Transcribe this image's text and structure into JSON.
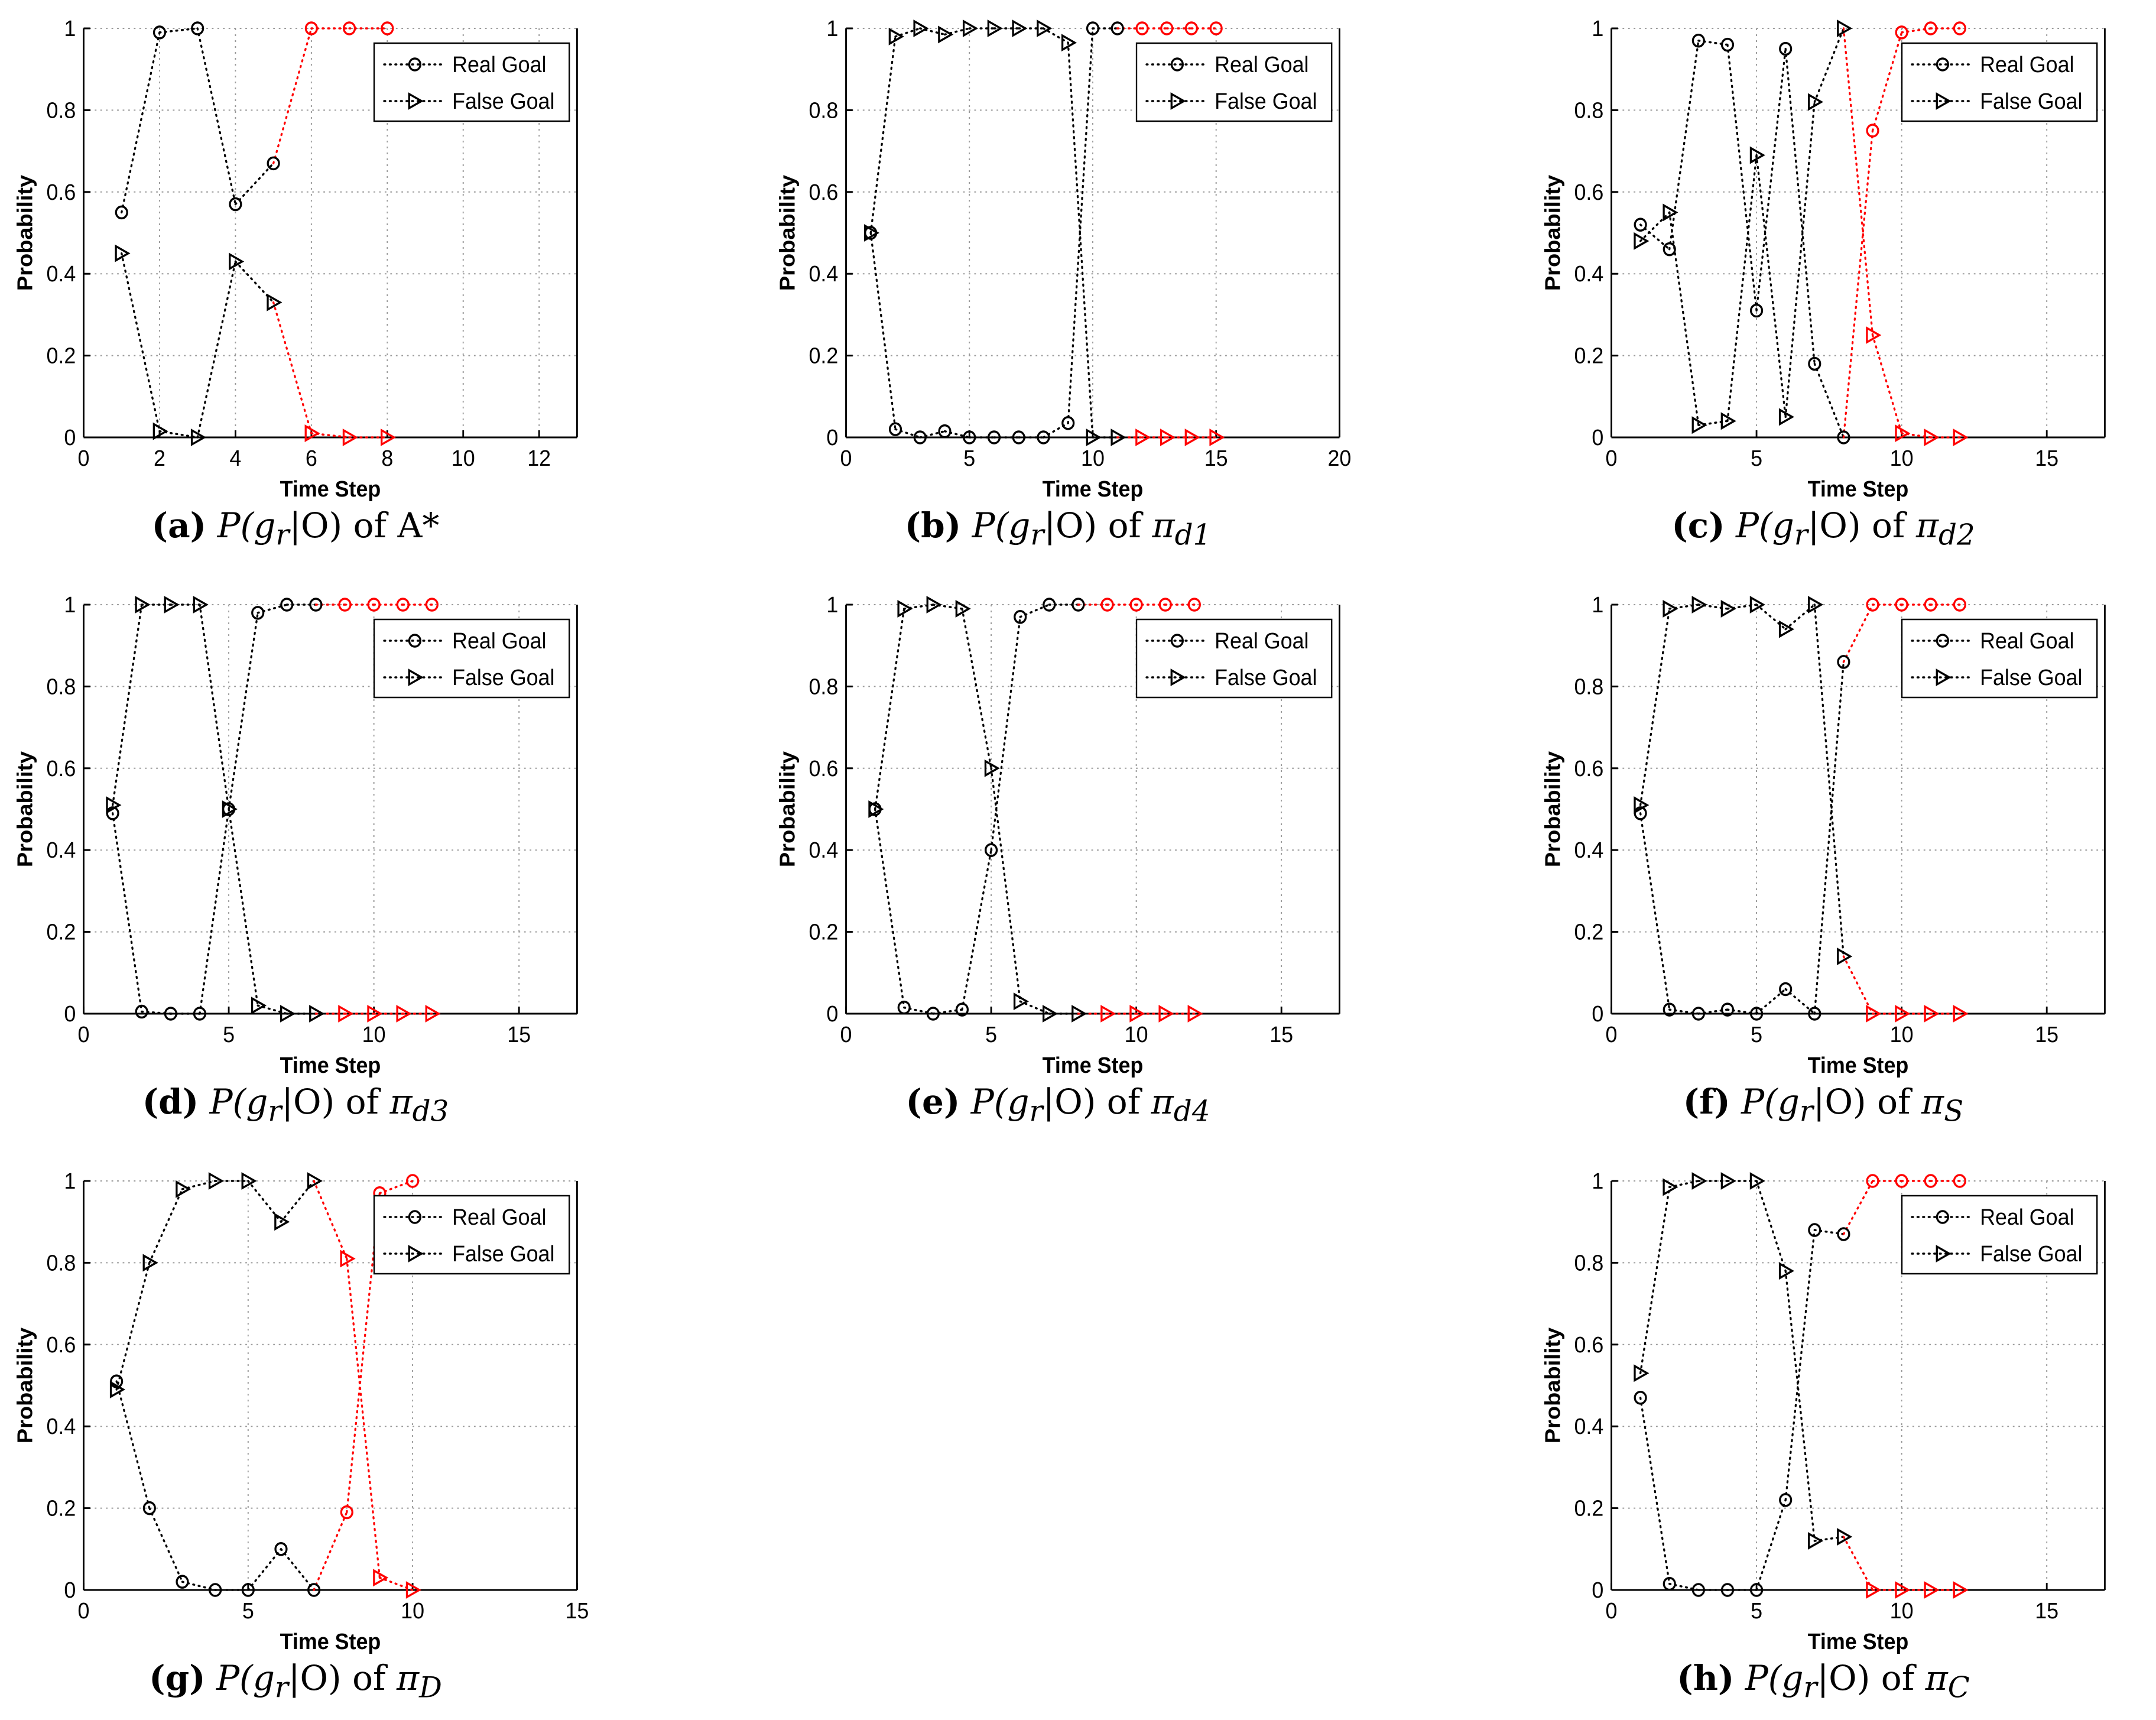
{
  "figure": {
    "panels": [
      {
        "id": "a",
        "caption": {
          "letter": "(a)",
          "expr": "P(g",
          "sub": "r",
          "expr2": "|O) of ",
          "policy": "A*",
          "policy_sub": ""
        },
        "chart_data": {
          "type": "line",
          "xlabel": "Time Step",
          "ylabel": "Probability",
          "xlim": [
            0,
            13
          ],
          "ylim": [
            0,
            1
          ],
          "xticks": [
            0,
            2,
            4,
            6,
            8,
            10,
            12
          ],
          "yticks": [
            0,
            0.2,
            0.4,
            0.6,
            0.8,
            1
          ],
          "grid": true,
          "legend_position": "top-right",
          "series": [
            {
              "name": "Real Goal",
              "marker": "circle",
              "x": [
                1,
                2,
                3,
                4,
                5,
                6,
                7,
                8
              ],
              "values": [
                0.55,
                0.99,
                1.0,
                0.57,
                0.67,
                1.0,
                1.0,
                1.0
              ],
              "red_from": 6
            },
            {
              "name": "False Goal",
              "marker": "triangle-right",
              "x": [
                1,
                2,
                3,
                4,
                5,
                6,
                7,
                8
              ],
              "values": [
                0.45,
                0.015,
                0.0,
                0.43,
                0.33,
                0.01,
                0.0,
                0.0
              ],
              "red_from": 6
            }
          ]
        }
      },
      {
        "id": "b",
        "caption": {
          "letter": "(b)",
          "expr": "P(g",
          "sub": "r",
          "expr2": "|O) of ",
          "policy": "π",
          "policy_sub": "d1"
        },
        "chart_data": {
          "type": "line",
          "xlabel": "Time Step",
          "ylabel": "Probability",
          "xlim": [
            0,
            20
          ],
          "ylim": [
            0,
            1
          ],
          "xticks": [
            0,
            5,
            10,
            15,
            20
          ],
          "yticks": [
            0,
            0.2,
            0.4,
            0.6,
            0.8,
            1
          ],
          "grid": true,
          "legend_position": "top-right",
          "series": [
            {
              "name": "Real Goal",
              "marker": "circle",
              "x": [
                1,
                2,
                3,
                4,
                5,
                6,
                7,
                8,
                9,
                10,
                11,
                12,
                13,
                14,
                15
              ],
              "values": [
                0.5,
                0.02,
                0.0,
                0.015,
                0.0,
                0.0,
                0.0,
                0.0,
                0.035,
                1.0,
                1.0,
                1.0,
                1.0,
                1.0,
                1.0
              ],
              "red_from": 12
            },
            {
              "name": "False Goal",
              "marker": "triangle-right",
              "x": [
                1,
                2,
                3,
                4,
                5,
                6,
                7,
                8,
                9,
                10,
                11,
                12,
                13,
                14,
                15
              ],
              "values": [
                0.5,
                0.98,
                1.0,
                0.985,
                1.0,
                1.0,
                1.0,
                1.0,
                0.965,
                0.0,
                0.0,
                0.0,
                0.0,
                0.0,
                0.0
              ],
              "red_from": 12
            }
          ]
        }
      },
      {
        "id": "c",
        "caption": {
          "letter": "(c)",
          "expr": "P(g",
          "sub": "r",
          "expr2": "|O) of ",
          "policy": "π",
          "policy_sub": "d2"
        },
        "chart_data": {
          "type": "line",
          "xlabel": "Time Step",
          "ylabel": "Probability",
          "xlim": [
            0,
            17
          ],
          "ylim": [
            0,
            1
          ],
          "xticks": [
            0,
            5,
            10,
            15
          ],
          "yticks": [
            0,
            0.2,
            0.4,
            0.6,
            0.8,
            1
          ],
          "grid": true,
          "legend_position": "top-right",
          "series": [
            {
              "name": "Real Goal",
              "marker": "circle",
              "x": [
                1,
                2,
                3,
                4,
                5,
                6,
                7,
                8,
                9,
                10,
                11,
                12
              ],
              "values": [
                0.52,
                0.46,
                0.97,
                0.96,
                0.31,
                0.95,
                0.18,
                0.0,
                0.75,
                0.99,
                1.0,
                1.0
              ],
              "red_from": 9
            },
            {
              "name": "False Goal",
              "marker": "triangle-right",
              "x": [
                1,
                2,
                3,
                4,
                5,
                6,
                7,
                8,
                9,
                10,
                11,
                12
              ],
              "values": [
                0.48,
                0.55,
                0.03,
                0.04,
                0.69,
                0.05,
                0.82,
                1.0,
                0.25,
                0.01,
                0.0,
                0.0
              ],
              "red_from": 9
            }
          ]
        }
      },
      {
        "id": "d",
        "caption": {
          "letter": "(d)",
          "expr": "P(g",
          "sub": "r",
          "expr2": "|O) of ",
          "policy": "π",
          "policy_sub": "d3"
        },
        "chart_data": {
          "type": "line",
          "xlabel": "Time Step",
          "ylabel": "Probability",
          "xlim": [
            0,
            17
          ],
          "ylim": [
            0,
            1
          ],
          "xticks": [
            0,
            5,
            10,
            15
          ],
          "yticks": [
            0,
            0.2,
            0.4,
            0.6,
            0.8,
            1
          ],
          "grid": true,
          "legend_position": "top-right",
          "series": [
            {
              "name": "Real Goal",
              "marker": "circle",
              "x": [
                1,
                2,
                3,
                4,
                5,
                6,
                7,
                8,
                9,
                10,
                11,
                12
              ],
              "values": [
                0.49,
                0.005,
                0.0,
                0.0,
                0.5,
                0.98,
                1.0,
                1.0,
                1.0,
                1.0,
                1.0,
                1.0
              ],
              "red_from": 9
            },
            {
              "name": "False Goal",
              "marker": "triangle-right",
              "x": [
                1,
                2,
                3,
                4,
                5,
                6,
                7,
                8,
                9,
                10,
                11,
                12
              ],
              "values": [
                0.51,
                1.0,
                1.0,
                1.0,
                0.5,
                0.02,
                0.0,
                0.0,
                0.0,
                0.0,
                0.0,
                0.0
              ],
              "red_from": 9
            }
          ]
        }
      },
      {
        "id": "e",
        "caption": {
          "letter": "(e)",
          "expr": "P(g",
          "sub": "r",
          "expr2": "|O) of ",
          "policy": "π",
          "policy_sub": "d4"
        },
        "chart_data": {
          "type": "line",
          "xlabel": "Time Step",
          "ylabel": "Probability",
          "xlim": [
            0,
            17
          ],
          "ylim": [
            0,
            1
          ],
          "xticks": [
            0,
            5,
            10,
            15
          ],
          "yticks": [
            0,
            0.2,
            0.4,
            0.6,
            0.8,
            1
          ],
          "grid": true,
          "legend_position": "top-right",
          "series": [
            {
              "name": "Real Goal",
              "marker": "circle",
              "x": [
                1,
                2,
                3,
                4,
                5,
                6,
                7,
                8,
                9,
                10,
                11,
                12
              ],
              "values": [
                0.5,
                0.015,
                0.0,
                0.01,
                0.4,
                0.97,
                1.0,
                1.0,
                1.0,
                1.0,
                1.0,
                1.0
              ],
              "red_from": 9
            },
            {
              "name": "False Goal",
              "marker": "triangle-right",
              "x": [
                1,
                2,
                3,
                4,
                5,
                6,
                7,
                8,
                9,
                10,
                11,
                12
              ],
              "values": [
                0.5,
                0.99,
                1.0,
                0.99,
                0.6,
                0.03,
                0.0,
                0.0,
                0.0,
                0.0,
                0.0,
                0.0
              ],
              "red_from": 9
            }
          ]
        }
      },
      {
        "id": "f",
        "caption": {
          "letter": "(f)",
          "expr": "P(g",
          "sub": "r",
          "expr2": "|O) of ",
          "policy": "π",
          "policy_sub": "S"
        },
        "chart_data": {
          "type": "line",
          "xlabel": "Time Step",
          "ylabel": "Probability",
          "xlim": [
            0,
            17
          ],
          "ylim": [
            0,
            1
          ],
          "xticks": [
            0,
            5,
            10,
            15
          ],
          "yticks": [
            0,
            0.2,
            0.4,
            0.6,
            0.8,
            1
          ],
          "grid": true,
          "legend_position": "top-right",
          "series": [
            {
              "name": "Real Goal",
              "marker": "circle",
              "x": [
                1,
                2,
                3,
                4,
                5,
                6,
                7,
                8,
                9,
                10,
                11,
                12
              ],
              "values": [
                0.49,
                0.01,
                0.0,
                0.01,
                0.0,
                0.06,
                0.0,
                0.86,
                1.0,
                1.0,
                1.0,
                1.0
              ],
              "red_from": 9
            },
            {
              "name": "False Goal",
              "marker": "triangle-right",
              "x": [
                1,
                2,
                3,
                4,
                5,
                6,
                7,
                8,
                9,
                10,
                11,
                12
              ],
              "values": [
                0.51,
                0.99,
                1.0,
                0.99,
                1.0,
                0.94,
                1.0,
                0.14,
                0.0,
                0.0,
                0.0,
                0.0
              ],
              "red_from": 9
            }
          ]
        }
      },
      {
        "id": "g",
        "caption": {
          "letter": "(g)",
          "expr": "P(g",
          "sub": "r",
          "expr2": "|O) of ",
          "policy": "π",
          "policy_sub": "D"
        },
        "chart_data": {
          "type": "line",
          "xlabel": "Time Step",
          "ylabel": "Probability",
          "xlim": [
            0,
            15
          ],
          "ylim": [
            0,
            1
          ],
          "xticks": [
            0,
            5,
            10,
            15
          ],
          "yticks": [
            0,
            0.2,
            0.4,
            0.6,
            0.8,
            1
          ],
          "grid": true,
          "legend_position": "top-right",
          "series": [
            {
              "name": "Real Goal",
              "marker": "circle",
              "x": [
                1,
                2,
                3,
                4,
                5,
                6,
                7,
                8,
                9,
                10
              ],
              "values": [
                0.51,
                0.2,
                0.02,
                0.0,
                0.0,
                0.1,
                0.0,
                0.19,
                0.97,
                1.0
              ],
              "red_from": 8
            },
            {
              "name": "False Goal",
              "marker": "triangle-right",
              "x": [
                1,
                2,
                3,
                4,
                5,
                6,
                7,
                8,
                9,
                10
              ],
              "values": [
                0.49,
                0.8,
                0.98,
                1.0,
                1.0,
                0.9,
                1.0,
                0.81,
                0.03,
                0.0
              ],
              "red_from": 8
            }
          ]
        }
      },
      {
        "id": "h",
        "caption": {
          "letter": "(h)",
          "expr": "P(g",
          "sub": "r",
          "expr2": "|O) of ",
          "policy": "π",
          "policy_sub": "C"
        },
        "chart_data": {
          "type": "line",
          "xlabel": "Time Step",
          "ylabel": "Probability",
          "xlim": [
            0,
            17
          ],
          "ylim": [
            0,
            1
          ],
          "xticks": [
            0,
            5,
            10,
            15
          ],
          "yticks": [
            0,
            0.2,
            0.4,
            0.6,
            0.8,
            1
          ],
          "grid": true,
          "legend_position": "top-right",
          "series": [
            {
              "name": "Real Goal",
              "marker": "circle",
              "x": [
                1,
                2,
                3,
                4,
                5,
                6,
                7,
                8,
                9,
                10,
                11,
                12
              ],
              "values": [
                0.47,
                0.015,
                0.0,
                0.0,
                0.0,
                0.22,
                0.88,
                0.87,
                1.0,
                1.0,
                1.0,
                1.0
              ],
              "red_from": 9
            },
            {
              "name": "False Goal",
              "marker": "triangle-right",
              "x": [
                1,
                2,
                3,
                4,
                5,
                6,
                7,
                8,
                9,
                10,
                11,
                12
              ],
              "values": [
                0.53,
                0.985,
                1.0,
                1.0,
                1.0,
                0.78,
                0.12,
                0.13,
                0.0,
                0.0,
                0.0,
                0.0
              ],
              "red_from": 9
            }
          ]
        }
      }
    ],
    "colors": {
      "base": "#000000",
      "highlight": "#ff0000",
      "grid": "#9a9a9a"
    }
  }
}
